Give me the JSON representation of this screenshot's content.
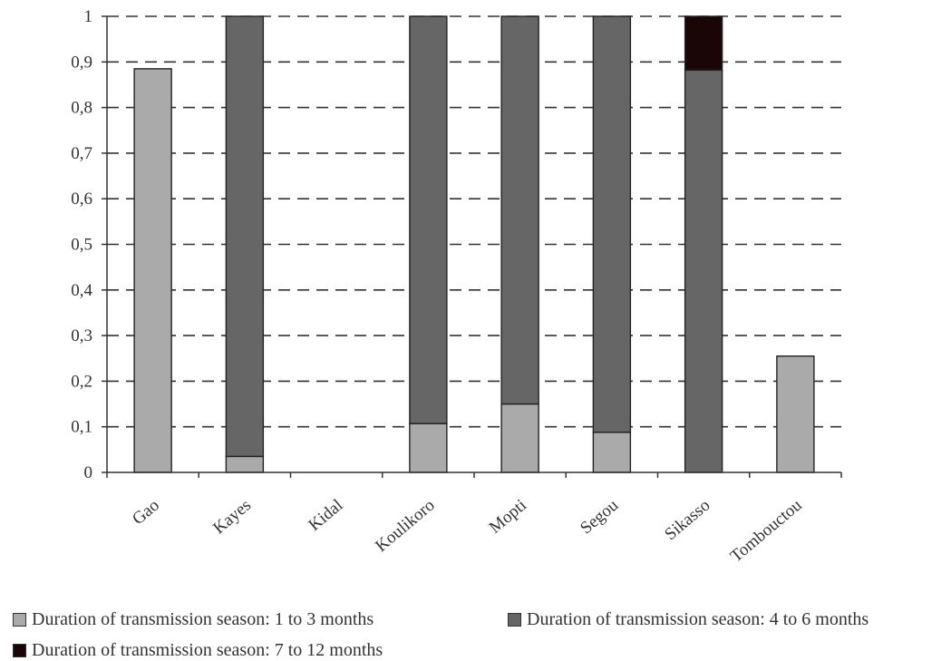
{
  "chart_data": {
    "type": "bar",
    "stacked": true,
    "categories": [
      "Gao",
      "Kayes",
      "Kidal",
      "Koulikoro",
      "Mopti",
      "Segou",
      "Sikasso",
      "Tombouctou"
    ],
    "series": [
      {
        "name": "Duration of transmission season: 1 to 3 months",
        "color": "#aaaaaa",
        "values": [
          0.885,
          0.035,
          0,
          0.107,
          0.15,
          0.088,
          0,
          0.255
        ]
      },
      {
        "name": "Duration of transmission season: 4 to 6 months",
        "color": "#666666",
        "values": [
          0,
          0.965,
          0,
          0.893,
          0.85,
          0.912,
          0.882,
          0
        ]
      },
      {
        "name": "Duration of transmission season: 7 to 12 months",
        "color": "#1a0606",
        "values": [
          0,
          0,
          0,
          0,
          0,
          0,
          0.118,
          0
        ]
      }
    ],
    "yticks": [
      "0",
      "0,1",
      "0,2",
      "0,3",
      "0,4",
      "0,5",
      "0,6",
      "0,7",
      "0,8",
      "0,9",
      "1"
    ],
    "ylim": [
      0,
      1
    ],
    "grid": "dashed horizontal",
    "legend_position": "bottom"
  }
}
